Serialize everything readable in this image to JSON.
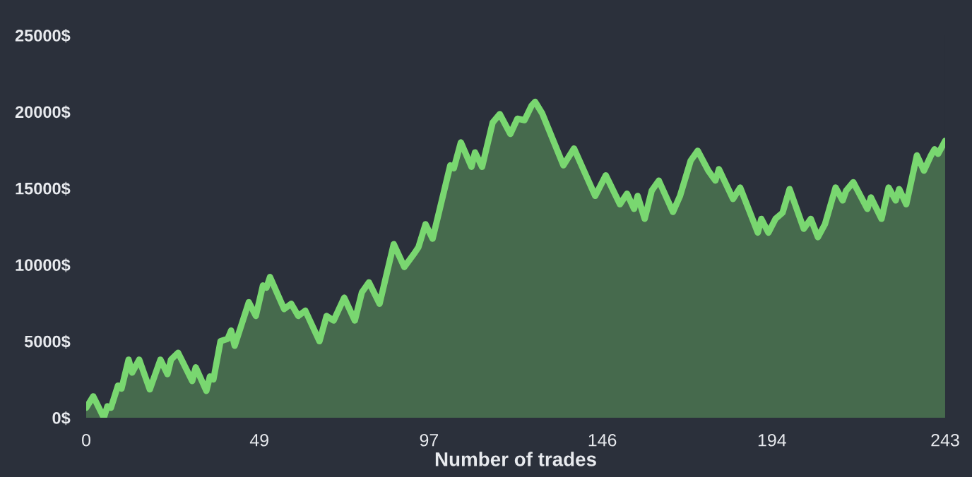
{
  "chart_data": {
    "type": "area",
    "xlabel": "Number of trades",
    "x": [
      0,
      2,
      5,
      6,
      7,
      9,
      10,
      12,
      13,
      15,
      18,
      21,
      23,
      24,
      26,
      30,
      31,
      34,
      35,
      36,
      38,
      40,
      41,
      42,
      46,
      48,
      50,
      51,
      52,
      56,
      58,
      60,
      62,
      66,
      68,
      70,
      73,
      76,
      78,
      80,
      83,
      87,
      90,
      93,
      94,
      96,
      98,
      103,
      104,
      106,
      109,
      110,
      112,
      115,
      117,
      120,
      122,
      124,
      126,
      127,
      129,
      135,
      138,
      144,
      147,
      151,
      153,
      155,
      156,
      158,
      160,
      162,
      166,
      168,
      171,
      173,
      176,
      178,
      179,
      183,
      185,
      190,
      191,
      193,
      195,
      197,
      199,
      203,
      205,
      207,
      209,
      212,
      214,
      215,
      217,
      221,
      222,
      225,
      227,
      229,
      230,
      232,
      235,
      237,
      239,
      240,
      241,
      243
    ],
    "series": [
      {
        "color": "#79d770",
        "values": [
          650,
          1400,
          0,
          750,
          650,
          2100,
          1900,
          3800,
          2950,
          3800,
          1850,
          3800,
          2850,
          3800,
          4250,
          2400,
          3300,
          1750,
          2700,
          2500,
          5000,
          5150,
          5700,
          4700,
          7550,
          6650,
          8650,
          8500,
          9200,
          7100,
          7450,
          6650,
          7000,
          5000,
          6650,
          6350,
          7850,
          6350,
          8200,
          8850,
          7450,
          11350,
          9850,
          10800,
          11150,
          12650,
          11700,
          16500,
          16300,
          18000,
          16400,
          17350,
          16400,
          19300,
          19850,
          18550,
          19550,
          19450,
          20400,
          20650,
          19900,
          16500,
          17600,
          14500,
          15850,
          13950,
          14650,
          13650,
          14500,
          13000,
          14850,
          15500,
          13450,
          14500,
          16800,
          17450,
          16150,
          15500,
          16250,
          14300,
          15050,
          12100,
          13000,
          12100,
          13000,
          13400,
          14950,
          12350,
          13000,
          11800,
          12650,
          15050,
          14200,
          14850,
          15400,
          13650,
          14400,
          13000,
          15050,
          14200,
          14950,
          13950,
          17150,
          16150,
          17150,
          17550,
          17250,
          18100
        ]
      }
    ],
    "xlim": [
      0,
      243
    ],
    "xticks": [
      0,
      49,
      97,
      146,
      194,
      243
    ],
    "ylim": [
      0,
      25000
    ],
    "yticks": [
      {
        "value": 0,
        "label": "0$"
      },
      {
        "value": 5000,
        "label": "5000$"
      },
      {
        "value": 10000,
        "label": "10000$"
      },
      {
        "value": 15000,
        "label": "15000$"
      },
      {
        "value": 20000,
        "label": "20000$"
      },
      {
        "value": 25000,
        "label": "25000$"
      }
    ],
    "grid": false,
    "legend": false,
    "marker": "none",
    "line_style": "solid"
  }
}
